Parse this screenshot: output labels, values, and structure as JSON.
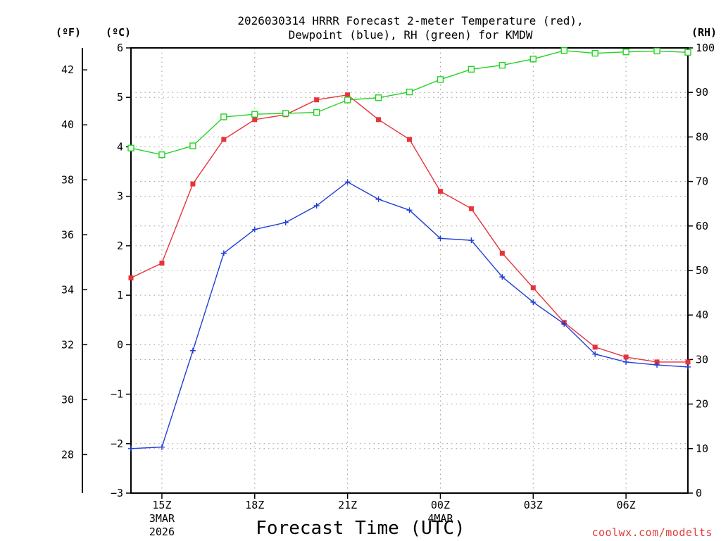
{
  "chart_data": {
    "type": "line",
    "title_line1": "2026030314 HRRR Forecast 2-meter Temperature (red),",
    "title_line2": "Dewpoint (blue), RH (green) for KMDW",
    "xlabel": "Forecast Time (UTC)",
    "credit": "coolwx.com/modelts",
    "units": {
      "fahrenheit": "(ºF)",
      "celsius": "(ºC)",
      "rh": "(RH)"
    },
    "x_hours": [
      14,
      15,
      16,
      17,
      18,
      19,
      20,
      21,
      22,
      23,
      24,
      25,
      26,
      27,
      28,
      29,
      30,
      31,
      32
    ],
    "x_ticks": [
      {
        "hour": 15,
        "label": "15Z",
        "sub1": "3MAR",
        "sub2": "2026"
      },
      {
        "hour": 18,
        "label": "18Z",
        "sub1": "",
        "sub2": ""
      },
      {
        "hour": 21,
        "label": "21Z",
        "sub1": "",
        "sub2": ""
      },
      {
        "hour": 24,
        "label": "00Z",
        "sub1": "4MAR",
        "sub2": ""
      },
      {
        "hour": 27,
        "label": "03Z",
        "sub1": "",
        "sub2": ""
      },
      {
        "hour": 30,
        "label": "06Z",
        "sub1": "",
        "sub2": ""
      }
    ],
    "x_range": [
      14,
      32
    ],
    "celsius_range": [
      -3,
      6
    ],
    "celsius_ticks": [
      "−3",
      "−2",
      "−1",
      "0",
      "1",
      "2",
      "3",
      "4",
      "5",
      "6"
    ],
    "fahrenheit_ticks": [
      "28",
      "30",
      "32",
      "34",
      "36",
      "38",
      "40",
      "42"
    ],
    "rh_range": [
      0,
      100
    ],
    "rh_ticks": [
      "0",
      "10",
      "20",
      "30",
      "40",
      "50",
      "60",
      "70",
      "80",
      "90",
      "100"
    ],
    "series": [
      {
        "name": "Temperature",
        "unit": "C",
        "color": "#e8333a",
        "marker": "filled-square",
        "values": [
          1.35,
          1.65,
          3.25,
          4.15,
          4.55,
          4.65,
          4.95,
          5.05,
          4.55,
          4.15,
          3.1,
          2.75,
          1.85,
          1.15,
          0.45,
          -0.05,
          -0.25,
          -0.35,
          -0.35
        ]
      },
      {
        "name": "Dewpoint",
        "unit": "C",
        "color": "#1f3fd6",
        "marker": "plus",
        "values": [
          -2.1,
          -2.07,
          -0.12,
          1.85,
          2.33,
          2.47,
          2.81,
          3.29,
          2.94,
          2.72,
          2.15,
          2.11,
          1.37,
          0.86,
          0.42,
          -0.19,
          -0.35,
          -0.41,
          -0.45
        ]
      },
      {
        "name": "RH",
        "unit": "%",
        "color": "#22d322",
        "marker": "open-square",
        "values": [
          77.5,
          76,
          78,
          84.5,
          85.1,
          85.3,
          85.5,
          88.3,
          88.8,
          90.1,
          92.9,
          95.2,
          96.1,
          97.5,
          99.4,
          98.8,
          99.1,
          99.3,
          99.0
        ]
      }
    ]
  }
}
